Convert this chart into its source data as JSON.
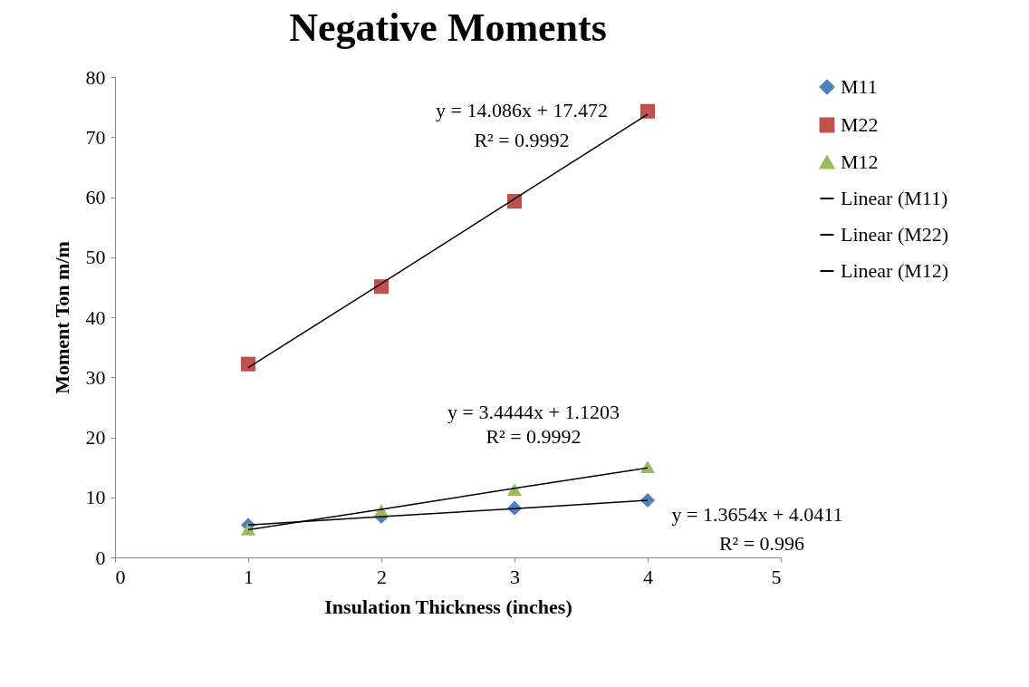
{
  "chart_data": {
    "type": "scatter",
    "title": "Negative Moments",
    "xlabel": "Insulation Thickness (inches)",
    "ylabel": "Moment Ton m/m",
    "x": [
      1,
      2,
      3,
      4
    ],
    "series": [
      {
        "name": "M11",
        "color": "#4f81bd",
        "marker": "diamond",
        "values": [
          5.4,
          6.8,
          8.2,
          9.5
        ]
      },
      {
        "name": "M22",
        "color": "#c0504d",
        "marker": "square",
        "values": [
          32.2,
          45.1,
          59.3,
          74.3
        ]
      },
      {
        "name": "M12",
        "color": "#9bbb59",
        "marker": "triangle",
        "values": [
          4.7,
          7.8,
          11.3,
          15.1
        ]
      },
      {
        "name": "Linear (M11)",
        "type": "line",
        "color": "#000000",
        "marker": "none",
        "values": [
          5.4,
          6.8,
          8.1,
          9.5
        ]
      },
      {
        "name": "Linear (M22)",
        "type": "line",
        "color": "#000000",
        "marker": "none",
        "values": [
          31.6,
          45.6,
          59.7,
          73.8
        ]
      },
      {
        "name": "Linear (M12)",
        "type": "line",
        "color": "#000000",
        "marker": "none",
        "values": [
          4.6,
          8.0,
          11.5,
          14.9
        ]
      }
    ],
    "annotations": [
      "y = 14.086x + 17.472",
      "R² = 0.9992",
      "y = 3.4444x + 1.1203",
      "R² = 0.9992",
      "y = 1.3654x + 4.0411",
      "R² = 0.996"
    ],
    "xlim": [
      0,
      5
    ],
    "xticks": [
      0,
      1,
      2,
      3,
      4,
      5
    ],
    "ylim": [
      0,
      80
    ],
    "yticks": [
      0,
      10,
      20,
      30,
      40,
      50,
      60,
      70,
      80
    ],
    "grid": false,
    "legend": "right",
    "line_style": "solid"
  }
}
